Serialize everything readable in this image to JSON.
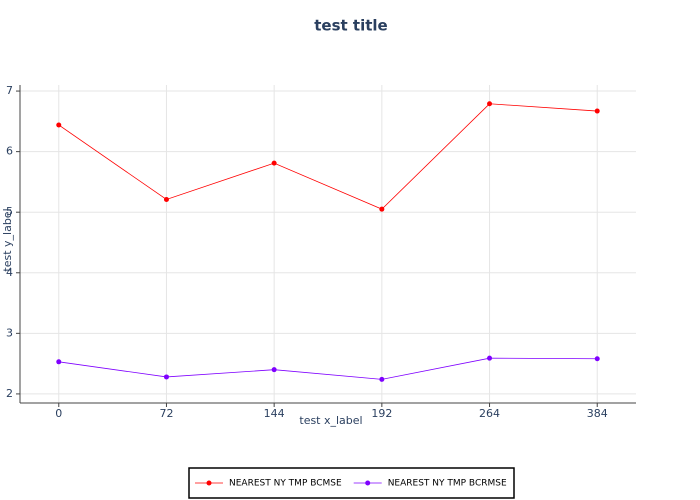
{
  "chart_data": {
    "type": "line",
    "title": "test title",
    "x_label": "test x_label",
    "y_label": "test y_label",
    "categories": [
      "0",
      "72",
      "144",
      "192",
      "264",
      "384"
    ],
    "series": [
      {
        "name": "NEAREST NY TMP BCMSE",
        "color": "#ff0000",
        "values": [
          6.44,
          5.21,
          5.81,
          5.05,
          6.79,
          6.67
        ]
      },
      {
        "name": "NEAREST NY TMP BCRMSE",
        "color": "#7f00ff",
        "values": [
          2.53,
          2.28,
          2.4,
          2.24,
          2.59,
          2.58
        ]
      }
    ],
    "ylim": [
      1.85,
      7.1
    ],
    "yticks": [
      2,
      3,
      4,
      5,
      6,
      7
    ],
    "grid": true,
    "legend": "bottom"
  }
}
